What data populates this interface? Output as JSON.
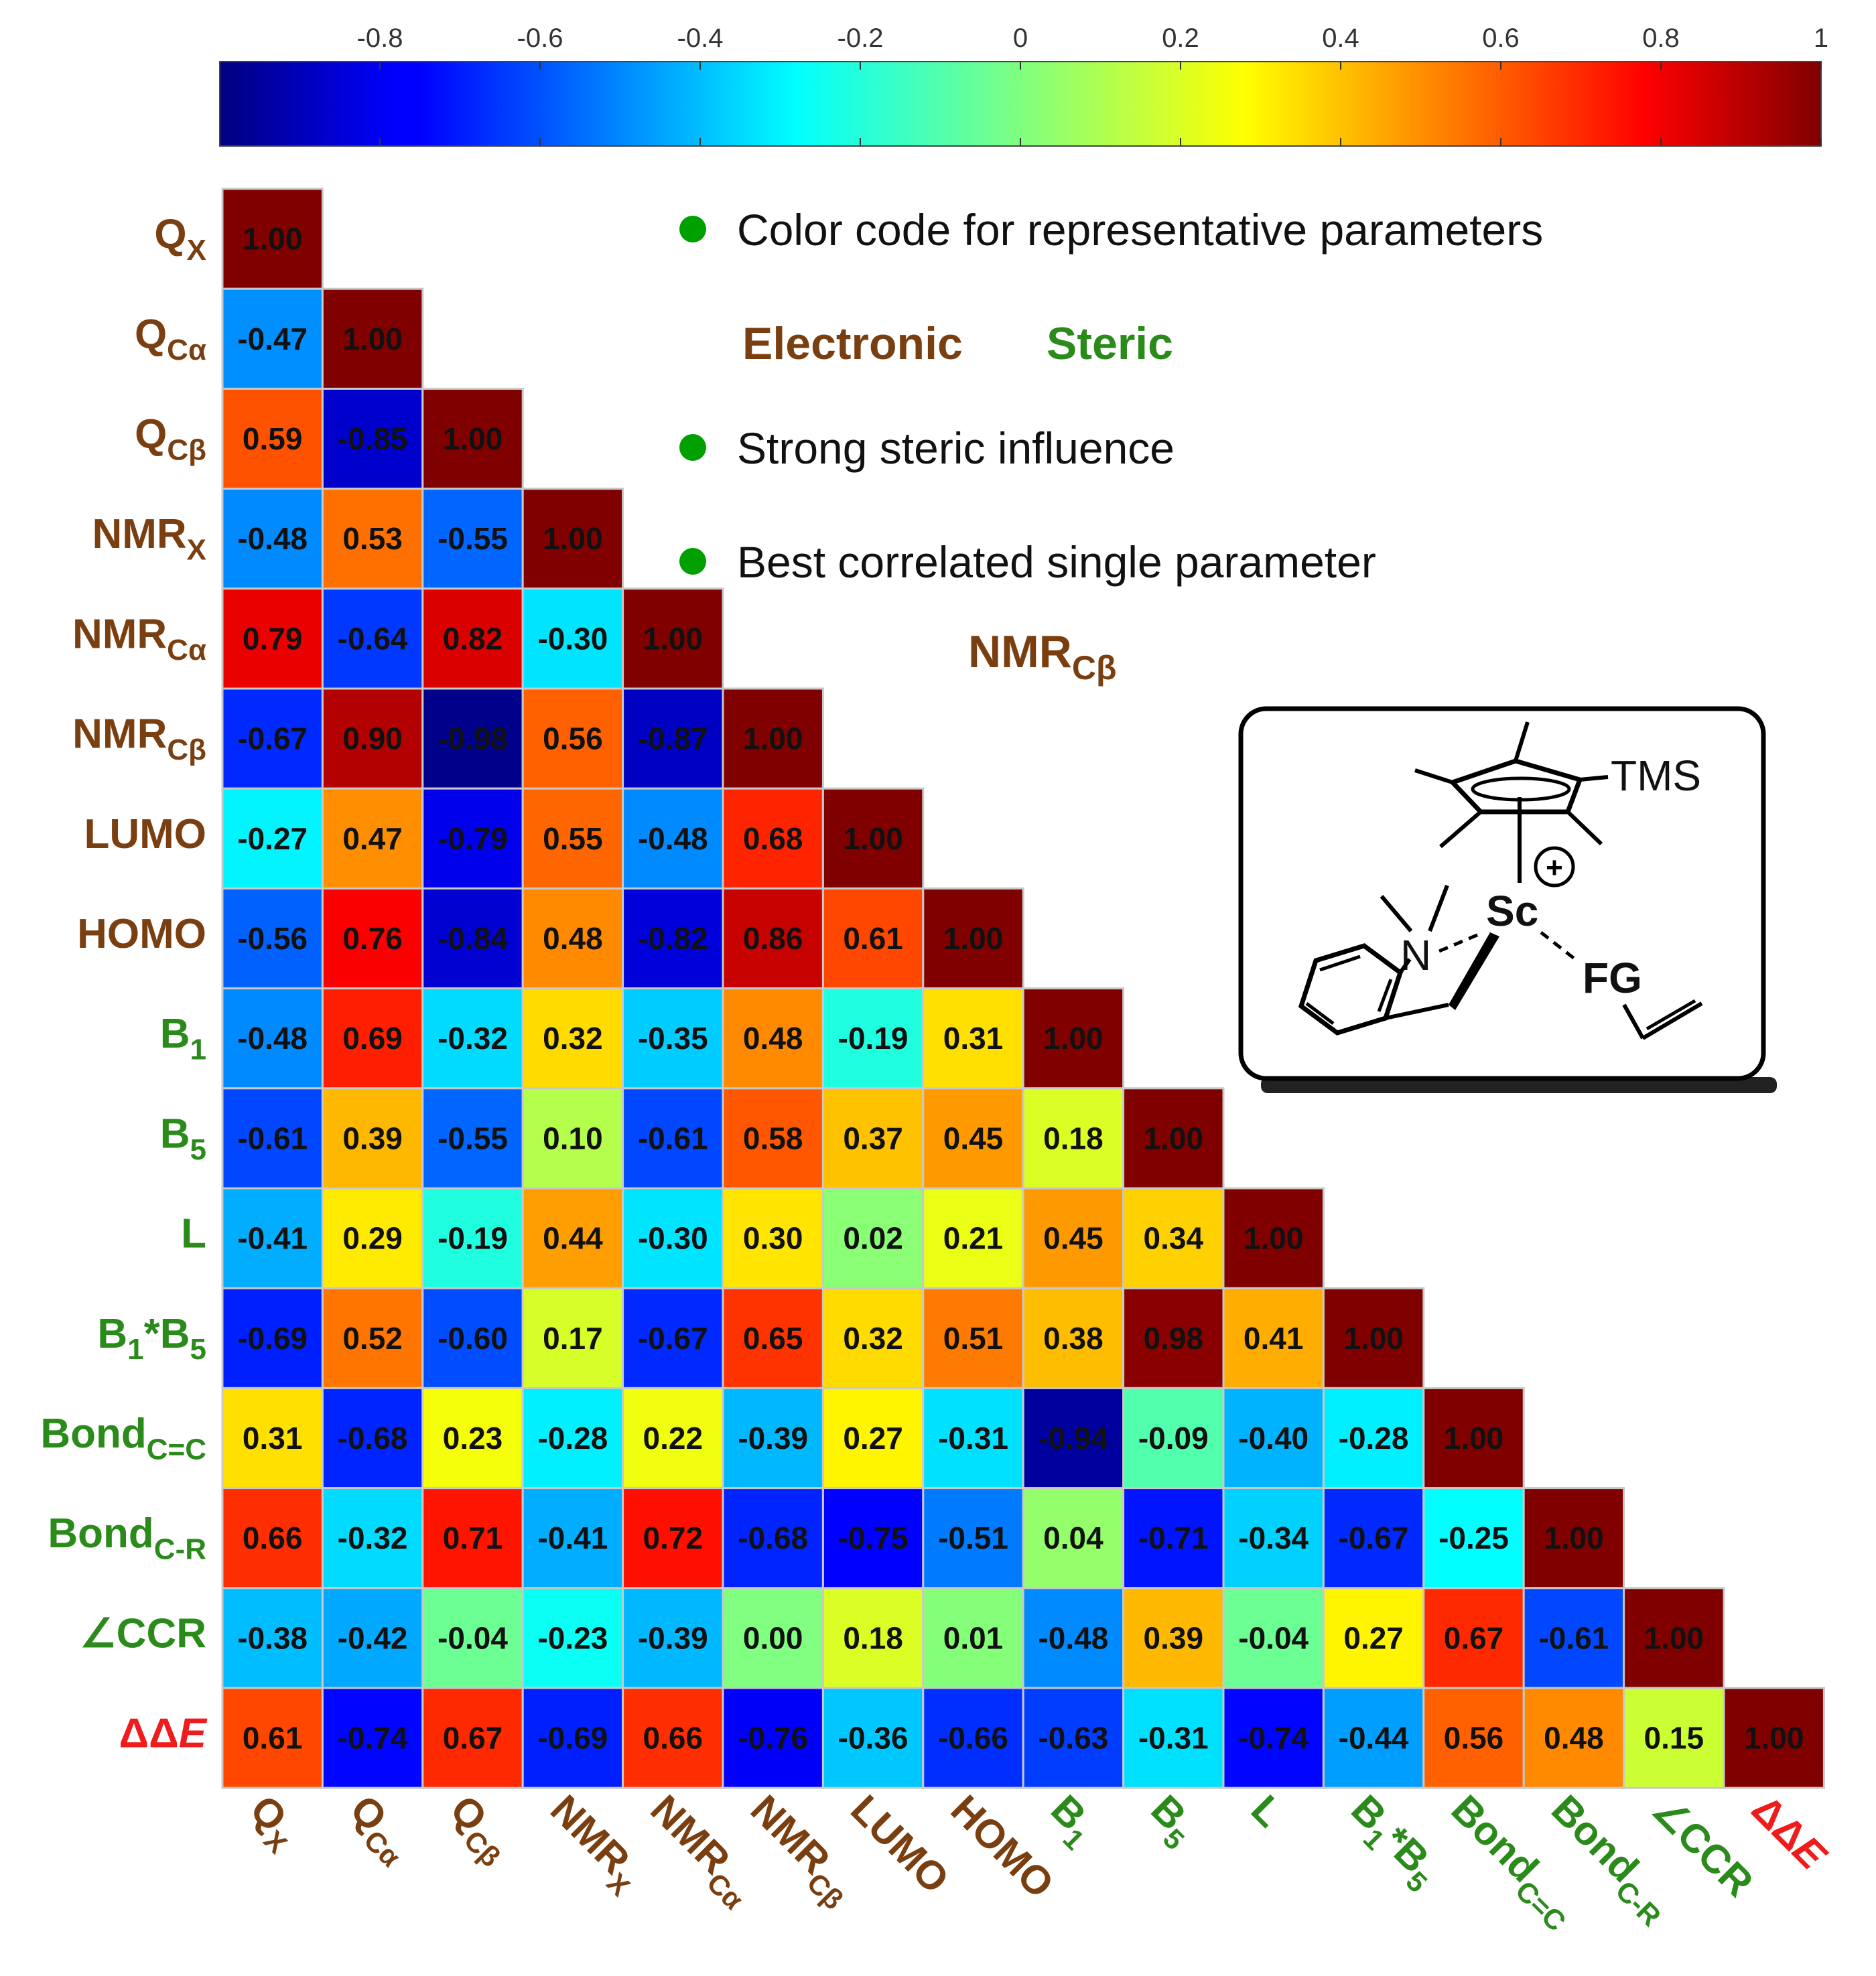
{
  "chart_data": {
    "type": "heatmap",
    "title": "",
    "variables": [
      {
        "base": "Q",
        "sub": "X",
        "kind": "electronic"
      },
      {
        "base": "Q",
        "sub": "Cα",
        "kind": "electronic"
      },
      {
        "base": "Q",
        "sub": "Cβ",
        "kind": "electronic"
      },
      {
        "base": "NMR",
        "sub": "X",
        "kind": "electronic"
      },
      {
        "base": "NMR",
        "sub": "Cα",
        "kind": "electronic"
      },
      {
        "base": "NMR",
        "sub": "Cβ",
        "kind": "electronic"
      },
      {
        "base": "LUMO",
        "sub": "",
        "kind": "electronic"
      },
      {
        "base": "HOMO",
        "sub": "",
        "kind": "electronic"
      },
      {
        "base": "B",
        "sub": "1",
        "kind": "steric"
      },
      {
        "base": "B",
        "sub": "5",
        "kind": "steric"
      },
      {
        "base": "L",
        "sub": "",
        "kind": "steric"
      },
      {
        "base": "B",
        "sub": "1",
        "suffix": "*B",
        "sub2": "5",
        "kind": "steric"
      },
      {
        "base": "Bond",
        "sub": "C=C",
        "kind": "steric"
      },
      {
        "base": "Bond",
        "sub": "C-R",
        "kind": "steric"
      },
      {
        "base": "∠CCR",
        "sub": "",
        "kind": "steric"
      },
      {
        "base": "ΔΔ",
        "italic": "E",
        "sub": "",
        "kind": "target"
      }
    ],
    "values": [
      [
        1.0
      ],
      [
        -0.47,
        1.0
      ],
      [
        0.59,
        -0.85,
        1.0
      ],
      [
        -0.48,
        0.53,
        -0.55,
        1.0
      ],
      [
        0.79,
        -0.64,
        0.82,
        -0.3,
        1.0
      ],
      [
        -0.67,
        0.9,
        -0.98,
        0.56,
        -0.87,
        1.0
      ],
      [
        -0.27,
        0.47,
        -0.79,
        0.55,
        -0.48,
        0.68,
        1.0
      ],
      [
        -0.56,
        0.76,
        -0.84,
        0.48,
        -0.82,
        0.86,
        0.61,
        1.0
      ],
      [
        -0.48,
        0.69,
        -0.32,
        0.32,
        -0.35,
        0.48,
        -0.19,
        0.31,
        1.0
      ],
      [
        -0.61,
        0.39,
        -0.55,
        0.1,
        -0.61,
        0.58,
        0.37,
        0.45,
        0.18,
        1.0
      ],
      [
        -0.41,
        0.29,
        -0.19,
        0.44,
        -0.3,
        0.3,
        0.02,
        0.21,
        0.45,
        0.34,
        1.0
      ],
      [
        -0.69,
        0.52,
        -0.6,
        0.17,
        -0.67,
        0.65,
        0.32,
        0.51,
        0.38,
        0.98,
        0.41,
        1.0
      ],
      [
        0.31,
        -0.68,
        0.23,
        -0.28,
        0.22,
        -0.39,
        0.27,
        -0.31,
        -0.94,
        -0.09,
        -0.4,
        -0.28,
        1.0
      ],
      [
        0.66,
        -0.32,
        0.71,
        -0.41,
        0.72,
        -0.68,
        -0.75,
        -0.51,
        0.04,
        -0.71,
        -0.34,
        -0.67,
        -0.25,
        1.0
      ],
      [
        -0.38,
        -0.42,
        -0.04,
        -0.23,
        -0.39,
        0.0,
        0.18,
        0.01,
        -0.48,
        0.39,
        -0.04,
        0.27,
        0.67,
        -0.61,
        1.0
      ],
      [
        0.61,
        -0.74,
        0.67,
        -0.69,
        0.66,
        -0.76,
        -0.36,
        -0.66,
        -0.63,
        -0.31,
        -0.74,
        -0.44,
        0.56,
        0.48,
        0.15,
        1.0
      ]
    ],
    "colorbar": {
      "range": [
        -1,
        1
      ],
      "ticks": [
        -0.8,
        -0.6,
        -0.4,
        -0.2,
        0,
        0.2,
        0.4,
        0.6,
        0.8,
        1
      ],
      "tick_labels": [
        "-0.8",
        "-0.6",
        "-0.4",
        "-0.2",
        "0",
        "0.2",
        "0.4",
        "0.6",
        "0.8",
        "1"
      ],
      "colormap": "jet",
      "placement": "top"
    },
    "legend": {
      "items": [
        "Color code for representative parameters",
        "Strong steric influence",
        "Best correlated single parameter"
      ],
      "electronic_label": "Electronic",
      "steric_label": "Steric",
      "best_parameter": {
        "base": "NMR",
        "sub": "Cβ"
      }
    },
    "molecule": {
      "tms": "TMS",
      "sc": "Sc",
      "plus": "+",
      "n": "N",
      "fg": "FG"
    }
  },
  "colors": {
    "electronic": "#7a3f10",
    "steric": "#2a8a1a",
    "target": "#ee1c1c",
    "bullet": "#00a000",
    "cell_border": "#c8c8c8"
  }
}
